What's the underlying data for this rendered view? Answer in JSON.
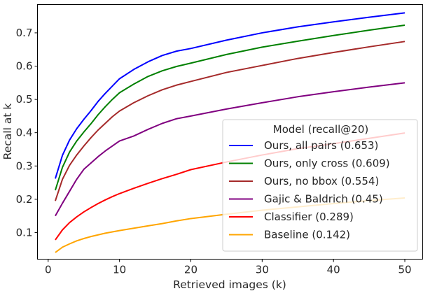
{
  "chart_data": {
    "type": "line",
    "title": "",
    "xlabel": "Retrieved images (k)",
    "ylabel": "Recall at k",
    "xlim": [
      -1.5,
      52.5
    ],
    "ylim": [
      0.02,
      0.785
    ],
    "xticks": [
      0,
      10,
      20,
      30,
      40,
      50
    ],
    "yticks": [
      0.1,
      0.2,
      0.3,
      0.4,
      0.5,
      0.6,
      0.7
    ],
    "grid": false,
    "legend": {
      "title": "Model (recall@20)",
      "placement": "bottom-right"
    },
    "x": [
      1,
      2,
      3,
      4,
      5,
      6,
      7,
      8,
      9,
      10,
      12,
      14,
      16,
      18,
      20,
      25,
      30,
      35,
      40,
      45,
      50
    ],
    "series": [
      {
        "name": "Ours, all pairs (0.653)",
        "color": "#0000ff",
        "values": [
          0.262,
          0.332,
          0.378,
          0.412,
          0.44,
          0.466,
          0.494,
          0.518,
          0.54,
          0.562,
          0.59,
          0.613,
          0.632,
          0.645,
          0.653,
          0.678,
          0.7,
          0.718,
          0.733,
          0.747,
          0.76
        ]
      },
      {
        "name": "Ours, only cross (0.609)",
        "color": "#008000",
        "values": [
          0.227,
          0.296,
          0.342,
          0.375,
          0.402,
          0.427,
          0.454,
          0.478,
          0.5,
          0.52,
          0.546,
          0.569,
          0.586,
          0.599,
          0.609,
          0.635,
          0.657,
          0.675,
          0.692,
          0.708,
          0.723
        ]
      },
      {
        "name": "Ours, no bbox (0.554)",
        "color": "#a52a2a",
        "values": [
          0.195,
          0.26,
          0.302,
          0.333,
          0.36,
          0.385,
          0.408,
          0.428,
          0.448,
          0.465,
          0.49,
          0.511,
          0.529,
          0.543,
          0.554,
          0.581,
          0.602,
          0.623,
          0.641,
          0.658,
          0.674
        ]
      },
      {
        "name": "Gajic & Baldrich (0.45)",
        "color": "#800080",
        "values": [
          0.15,
          0.188,
          0.224,
          0.26,
          0.29,
          0.309,
          0.328,
          0.345,
          0.36,
          0.375,
          0.39,
          0.41,
          0.428,
          0.442,
          0.45,
          0.471,
          0.49,
          0.508,
          0.523,
          0.537,
          0.55
        ]
      },
      {
        "name": "Classifier (0.289)",
        "color": "#ff0000",
        "values": [
          0.078,
          0.108,
          0.13,
          0.147,
          0.162,
          0.175,
          0.187,
          0.198,
          0.208,
          0.217,
          0.233,
          0.248,
          0.262,
          0.275,
          0.289,
          0.312,
          0.333,
          0.352,
          0.367,
          0.383,
          0.399
        ]
      },
      {
        "name": "Baseline (0.142)",
        "color": "#ffa500",
        "values": [
          0.04,
          0.056,
          0.066,
          0.075,
          0.082,
          0.088,
          0.093,
          0.098,
          0.102,
          0.106,
          0.113,
          0.12,
          0.127,
          0.135,
          0.142,
          0.155,
          0.167,
          0.177,
          0.187,
          0.196,
          0.204
        ]
      }
    ]
  }
}
